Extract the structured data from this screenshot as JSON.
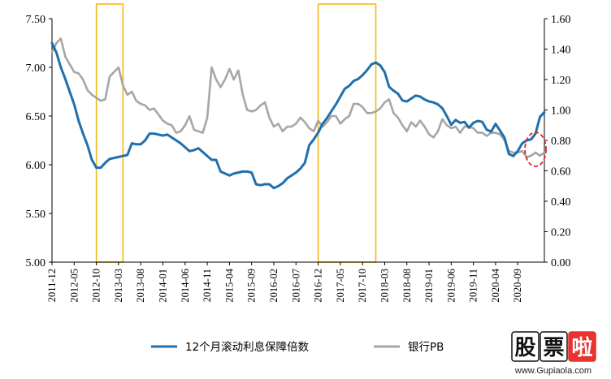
{
  "chart_data": {
    "type": "line",
    "x_labels": [
      "2011-12",
      "2012-05",
      "2012-10",
      "2013-03",
      "2013-08",
      "2014-01",
      "2014-06",
      "2014-11",
      "2015-04",
      "2015-09",
      "2016-02",
      "2016-07",
      "2016-12",
      "2017-05",
      "2017-10",
      "2018-03",
      "2018-08",
      "2019-01",
      "2019-06",
      "2019-11",
      "2020-04",
      "2020-09"
    ],
    "left_axis": {
      "min": 5.0,
      "max": 7.5,
      "ticks": [
        "5.00",
        "5.50",
        "6.00",
        "6.50",
        "7.00",
        "7.50"
      ]
    },
    "right_axis": {
      "min": 0.0,
      "max": 1.6,
      "ticks": [
        "0.00",
        "0.20",
        "0.40",
        "0.60",
        "0.80",
        "1.00",
        "1.20",
        "1.40",
        "1.60"
      ]
    },
    "series": [
      {
        "name": "12个月滚动利息保障倍数",
        "axis": "left",
        "color": "#1f6fad",
        "values": [
          7.25,
          7.15,
          7.0,
          6.88,
          6.75,
          6.62,
          6.45,
          6.32,
          6.2,
          6.05,
          5.97,
          5.97,
          6.02,
          6.06,
          6.07,
          6.08,
          6.09,
          6.1,
          6.22,
          6.21,
          6.21,
          6.25,
          6.32,
          6.32,
          6.31,
          6.3,
          6.31,
          6.28,
          6.25,
          6.22,
          6.18,
          6.14,
          6.15,
          6.17,
          6.13,
          6.09,
          6.05,
          6.05,
          5.93,
          5.91,
          5.89,
          5.91,
          5.92,
          5.93,
          5.93,
          5.92,
          5.8,
          5.79,
          5.8,
          5.8,
          5.76,
          5.78,
          5.81,
          5.86,
          5.89,
          5.92,
          5.96,
          6.02,
          6.2,
          6.26,
          6.33,
          6.42,
          6.48,
          6.55,
          6.62,
          6.7,
          6.78,
          6.81,
          6.86,
          6.88,
          6.92,
          6.97,
          7.03,
          7.05,
          7.02,
          6.95,
          6.8,
          6.76,
          6.73,
          6.66,
          6.65,
          6.68,
          6.71,
          6.7,
          6.67,
          6.65,
          6.64,
          6.62,
          6.58,
          6.5,
          6.41,
          6.46,
          6.43,
          6.44,
          6.38,
          6.43,
          6.45,
          6.44,
          6.36,
          6.34,
          6.42,
          6.35,
          6.28,
          6.11,
          6.09,
          6.14,
          6.22,
          6.25,
          6.26,
          6.32,
          6.49,
          6.54
        ]
      },
      {
        "name": "银行PB",
        "axis": "right",
        "color": "#a6a6a6",
        "values": [
          1.38,
          1.44,
          1.47,
          1.35,
          1.3,
          1.25,
          1.24,
          1.2,
          1.13,
          1.1,
          1.08,
          1.06,
          1.07,
          1.22,
          1.25,
          1.28,
          1.16,
          1.1,
          1.12,
          1.06,
          1.04,
          1.03,
          1.0,
          1.01,
          0.97,
          0.93,
          0.91,
          0.9,
          0.85,
          0.86,
          0.9,
          0.96,
          0.87,
          0.86,
          0.85,
          0.95,
          1.28,
          1.2,
          1.15,
          1.2,
          1.27,
          1.2,
          1.26,
          1.1,
          1.0,
          0.99,
          1.0,
          1.03,
          1.05,
          0.95,
          0.89,
          0.91,
          0.86,
          0.89,
          0.89,
          0.91,
          0.95,
          0.92,
          0.88,
          0.86,
          0.93,
          0.89,
          0.92,
          0.96,
          0.96,
          0.91,
          0.94,
          0.96,
          1.04,
          1.04,
          1.02,
          0.98,
          0.98,
          0.99,
          1.01,
          1.05,
          1.07,
          0.98,
          0.95,
          0.9,
          0.86,
          0.92,
          0.89,
          0.93,
          0.89,
          0.84,
          0.82,
          0.86,
          0.94,
          0.9,
          0.88,
          0.89,
          0.85,
          0.89,
          0.89,
          0.88,
          0.85,
          0.85,
          0.83,
          0.85,
          0.85,
          0.84,
          0.8,
          0.73,
          0.72,
          0.72,
          0.73,
          0.69,
          0.7,
          0.72,
          0.7,
          0.72
        ]
      }
    ],
    "highlights": [
      {
        "from_index": 10,
        "to_index": 16,
        "color": "#f2b91a"
      },
      {
        "from_index": 60,
        "to_index": 73,
        "color": "#f2b91a"
      }
    ],
    "annotation": {
      "shape": "dashed-ellipse",
      "index": 109,
      "right_value": 0.72,
      "color": "#d62728"
    },
    "legend": {
      "position": "bottom"
    },
    "grid": false
  },
  "watermark": {
    "text": "股票啦",
    "url": "www.Gupiaola.com"
  }
}
